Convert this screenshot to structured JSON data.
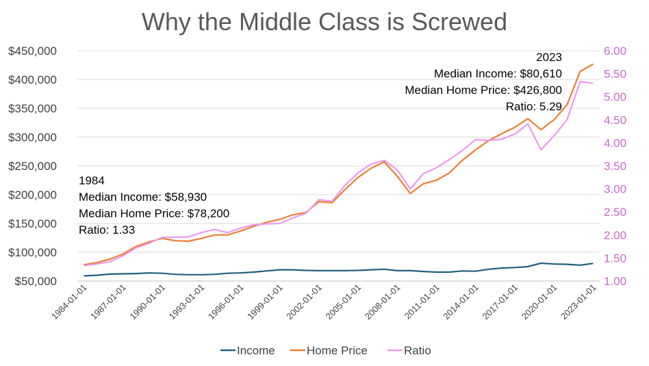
{
  "chart_data": {
    "type": "line",
    "title": "Why the Middle Class is Screwed",
    "x": [
      "1984-01-01",
      "1985-01-01",
      "1986-01-01",
      "1987-01-01",
      "1988-01-01",
      "1989-01-01",
      "1990-01-01",
      "1991-01-01",
      "1992-01-01",
      "1993-01-01",
      "1994-01-01",
      "1995-01-01",
      "1996-01-01",
      "1997-01-01",
      "1998-01-01",
      "1999-01-01",
      "2000-01-01",
      "2001-01-01",
      "2002-01-01",
      "2003-01-01",
      "2004-01-01",
      "2005-01-01",
      "2006-01-01",
      "2007-01-01",
      "2008-01-01",
      "2009-01-01",
      "2010-01-01",
      "2011-01-01",
      "2012-01-01",
      "2013-01-01",
      "2014-01-01",
      "2015-01-01",
      "2016-01-01",
      "2017-01-01",
      "2018-01-01",
      "2019-01-01",
      "2020-01-01",
      "2021-01-01",
      "2022-01-01",
      "2023-01-01"
    ],
    "x_tick_labels": [
      "1984-01-01",
      "1987-01-01",
      "1990-01-01",
      "1993-01-01",
      "1996-01-01",
      "1999-01-01",
      "2002-01-01",
      "2005-01-01",
      "2008-01-01",
      "2011-01-01",
      "2014-01-01",
      "2017-01-01",
      "2020-01-01",
      "2023-01-01"
    ],
    "y_left": {
      "ylim": [
        50000,
        450000
      ],
      "ticks": [
        50000,
        100000,
        150000,
        200000,
        250000,
        300000,
        350000,
        400000,
        450000
      ],
      "tick_labels": [
        "$50,000",
        "$100,000",
        "$150,000",
        "$200,000",
        "$250,000",
        "$300,000",
        "$350,000",
        "$400,000",
        "$450,000"
      ]
    },
    "y_right": {
      "ylim": [
        1.0,
        6.0
      ],
      "ticks": [
        1.0,
        1.5,
        2.0,
        2.5,
        3.0,
        3.5,
        4.0,
        4.5,
        5.0,
        5.5,
        6.0
      ],
      "tick_labels": [
        "1.00",
        "1.50",
        "2.00",
        "2.50",
        "3.00",
        "3.50",
        "4.00",
        "4.50",
        "5.00",
        "5.50",
        "6.00"
      ]
    },
    "series": [
      {
        "name": "Income",
        "axis": "left",
        "color": "#1f5f7f",
        "values": [
          58930,
          60000,
          62000,
          62500,
          63000,
          64000,
          63500,
          61500,
          61000,
          61000,
          61500,
          63500,
          64000,
          65500,
          67500,
          69500,
          69500,
          68500,
          68000,
          68000,
          68000,
          68500,
          69500,
          70500,
          68000,
          68000,
          66500,
          65500,
          65500,
          67500,
          67000,
          70500,
          72500,
          73500,
          75000,
          81000,
          79500,
          79000,
          77500,
          80610
        ]
      },
      {
        "name": "Home Price",
        "axis": "left",
        "color": "#ed7d31",
        "values": [
          78200,
          82000,
          88000,
          97000,
          110000,
          118000,
          124000,
          120000,
          119000,
          124000,
          130000,
          130000,
          137000,
          145000,
          152000,
          157000,
          165000,
          169000,
          188000,
          186000,
          209000,
          230000,
          246000,
          257000,
          232000,
          202000,
          219000,
          225000,
          238000,
          260000,
          278000,
          294000,
          306000,
          317000,
          332000,
          313000,
          330000,
          356000,
          414000,
          426800
        ]
      },
      {
        "name": "Ratio",
        "axis": "right",
        "color": "#ee99ee",
        "values": [
          1.33,
          1.37,
          1.42,
          1.55,
          1.72,
          1.82,
          1.95,
          1.95,
          1.96,
          2.05,
          2.12,
          2.05,
          2.15,
          2.22,
          2.24,
          2.25,
          2.37,
          2.47,
          2.77,
          2.73,
          3.08,
          3.35,
          3.54,
          3.62,
          3.41,
          3.0,
          3.33,
          3.46,
          3.64,
          3.84,
          4.07,
          4.05,
          4.08,
          4.19,
          4.41,
          3.85,
          4.15,
          4.5,
          5.33,
          5.29
        ]
      }
    ],
    "legend_position": "bottom",
    "annotations": [
      {
        "lines": [
          "1984",
          "Median Income: $58,930",
          "Median Home Price: $78,200",
          "Ratio: 1.33"
        ],
        "align": "left"
      },
      {
        "lines": [
          "2023",
          "Median Income: $80,610",
          "Median Home Price: $426,800",
          "Ratio: 5.29"
        ],
        "align": "right"
      }
    ],
    "grid": true
  }
}
